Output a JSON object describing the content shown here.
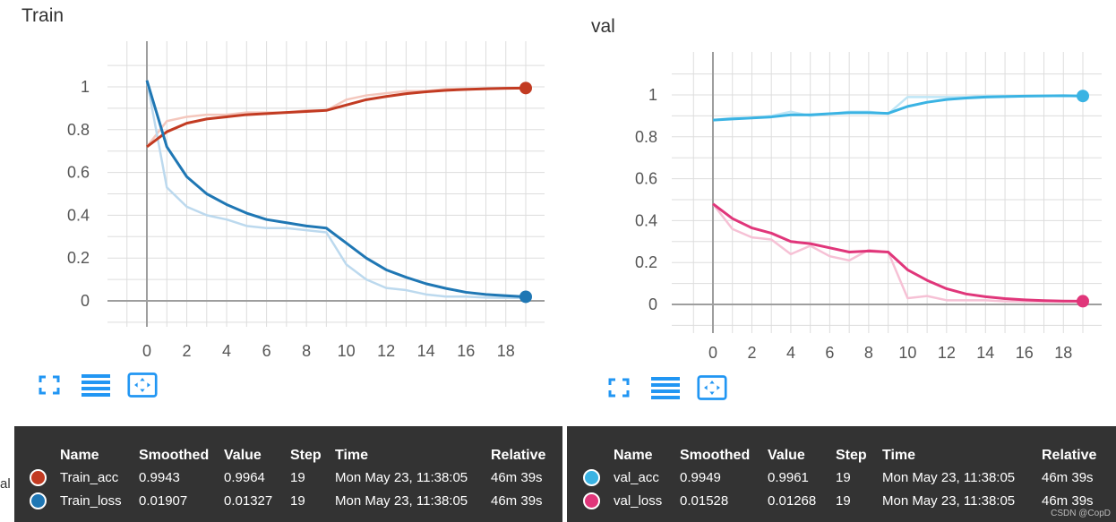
{
  "chart_data": [
    {
      "type": "line",
      "title": "Train",
      "xlim": [
        -2,
        20
      ],
      "ylim": [
        -0.1,
        1.2
      ],
      "x_ticks": [
        "0",
        "2",
        "4",
        "6",
        "8",
        "10",
        "12",
        "14",
        "16",
        "18"
      ],
      "y_ticks": [
        "0",
        "0.2",
        "0.4",
        "0.6",
        "0.8",
        "1"
      ],
      "grid": true,
      "x": [
        0,
        1,
        2,
        3,
        4,
        5,
        6,
        7,
        8,
        9,
        10,
        11,
        12,
        13,
        14,
        15,
        16,
        17,
        18,
        19
      ],
      "series": [
        {
          "name": "Train_acc",
          "color": "#c23b22",
          "raw_color": "#f4c7bd",
          "smoothed": [
            0.72,
            0.79,
            0.83,
            0.85,
            0.86,
            0.87,
            0.875,
            0.88,
            0.885,
            0.89,
            0.915,
            0.94,
            0.955,
            0.968,
            0.977,
            0.984,
            0.988,
            0.991,
            0.993,
            0.9943
          ],
          "values": [
            0.72,
            0.84,
            0.86,
            0.87,
            0.87,
            0.88,
            0.88,
            0.88,
            0.89,
            0.89,
            0.94,
            0.96,
            0.97,
            0.98,
            0.98,
            0.99,
            0.99,
            0.99,
            0.995,
            0.9964
          ]
        },
        {
          "name": "Train_loss",
          "color": "#1f77b4",
          "raw_color": "#bcd9ee",
          "smoothed": [
            1.03,
            0.72,
            0.58,
            0.5,
            0.45,
            0.41,
            0.38,
            0.365,
            0.35,
            0.34,
            0.27,
            0.2,
            0.145,
            0.11,
            0.08,
            0.058,
            0.04,
            0.03,
            0.024,
            0.01907
          ],
          "values": [
            1.03,
            0.53,
            0.44,
            0.4,
            0.38,
            0.35,
            0.34,
            0.34,
            0.33,
            0.32,
            0.17,
            0.1,
            0.06,
            0.05,
            0.03,
            0.02,
            0.02,
            0.015,
            0.014,
            0.01327
          ]
        }
      ]
    },
    {
      "type": "line",
      "title": "val",
      "xlim": [
        -2,
        20
      ],
      "ylim": [
        -0.1,
        1.2
      ],
      "x_ticks": [
        "0",
        "2",
        "4",
        "6",
        "8",
        "10",
        "12",
        "14",
        "16",
        "18"
      ],
      "y_ticks": [
        "0",
        "0.2",
        "0.4",
        "0.6",
        "0.8",
        "1"
      ],
      "grid": true,
      "x": [
        0,
        1,
        2,
        3,
        4,
        5,
        6,
        7,
        8,
        9,
        10,
        11,
        12,
        13,
        14,
        15,
        16,
        17,
        18,
        19
      ],
      "series": [
        {
          "name": "val_acc",
          "color": "#3ab3e3",
          "raw_color": "#bfe6f6",
          "smoothed": [
            0.88,
            0.885,
            0.89,
            0.895,
            0.905,
            0.905,
            0.91,
            0.915,
            0.915,
            0.912,
            0.945,
            0.965,
            0.978,
            0.985,
            0.99,
            0.992,
            0.994,
            0.995,
            0.996,
            0.9949
          ],
          "values": [
            0.88,
            0.89,
            0.89,
            0.9,
            0.92,
            0.9,
            0.91,
            0.92,
            0.92,
            0.91,
            0.99,
            0.99,
            0.99,
            0.99,
            0.995,
            0.995,
            0.995,
            0.996,
            0.996,
            0.9961
          ]
        },
        {
          "name": "val_loss",
          "color": "#e0367a",
          "raw_color": "#f6c1d5",
          "smoothed": [
            0.48,
            0.41,
            0.365,
            0.34,
            0.3,
            0.29,
            0.27,
            0.25,
            0.255,
            0.25,
            0.165,
            0.115,
            0.075,
            0.05,
            0.037,
            0.028,
            0.022,
            0.018,
            0.016,
            0.01528
          ],
          "values": [
            0.48,
            0.36,
            0.32,
            0.31,
            0.24,
            0.28,
            0.23,
            0.21,
            0.26,
            0.25,
            0.03,
            0.04,
            0.02,
            0.02,
            0.02,
            0.015,
            0.014,
            0.013,
            0.013,
            0.01268
          ]
        }
      ]
    }
  ],
  "left": {
    "title": "Train",
    "table": {
      "headers": [
        "Name",
        "Smoothed",
        "Value",
        "Step",
        "Time",
        "Relative"
      ],
      "rows": [
        {
          "color": "#c23b22",
          "name": "Train_acc",
          "smoothed": "0.9943",
          "value": "0.9964",
          "step": "19",
          "time": "Mon May 23, 11:38:05",
          "relative": "46m 39s"
        },
        {
          "color": "#1f77b4",
          "name": "Train_loss",
          "smoothed": "0.01907",
          "value": "0.01327",
          "step": "19",
          "time": "Mon May 23, 11:38:05",
          "relative": "46m 39s"
        }
      ]
    }
  },
  "right": {
    "title": "val",
    "table": {
      "headers": [
        "Name",
        "Smoothed",
        "Value",
        "Step",
        "Time",
        "Relative"
      ],
      "rows": [
        {
          "color": "#3ab3e3",
          "name": "val_acc",
          "smoothed": "0.9949",
          "value": "0.9961",
          "step": "19",
          "time": "Mon May 23, 11:38:05",
          "relative": "46m 39s"
        },
        {
          "color": "#e0367a",
          "name": "val_loss",
          "smoothed": "0.01528",
          "value": "0.01268",
          "step": "19",
          "time": "Mon May 23, 11:38:05",
          "relative": "46m 39s"
        }
      ]
    }
  },
  "toolbar": {
    "icons": [
      "fullscreen-icon",
      "toggle-y-axis-log-icon",
      "fit-domain-icon"
    ],
    "color": "#2196f3"
  },
  "watermark": "CSDN @CopD",
  "stray_text": "al"
}
